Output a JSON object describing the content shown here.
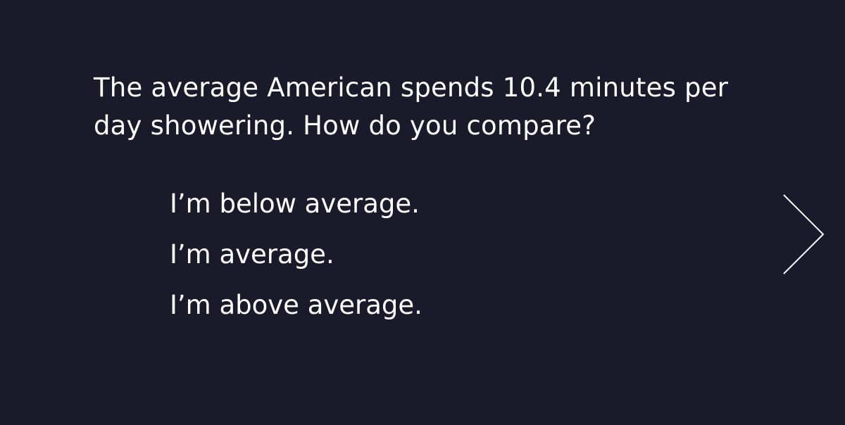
{
  "question": {
    "text": "The average American spends 10.4 minutes per day showering. How do you compare?"
  },
  "options": [
    {
      "label": "I’m below average."
    },
    {
      "label": "I’m average."
    },
    {
      "label": "I’m above average."
    }
  ],
  "navigation": {
    "next_icon": "chevron-right-icon"
  },
  "colors": {
    "background": "#1b1a2b",
    "text": "#ffffff"
  }
}
